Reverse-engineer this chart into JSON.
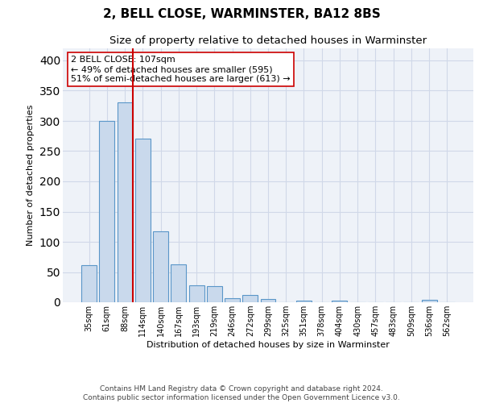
{
  "title": "2, BELL CLOSE, WARMINSTER, BA12 8BS",
  "subtitle": "Size of property relative to detached houses in Warminster",
  "xlabel": "Distribution of detached houses by size in Warminster",
  "ylabel": "Number of detached properties",
  "categories": [
    "35sqm",
    "61sqm",
    "88sqm",
    "114sqm",
    "140sqm",
    "167sqm",
    "193sqm",
    "219sqm",
    "246sqm",
    "272sqm",
    "299sqm",
    "325sqm",
    "351sqm",
    "378sqm",
    "404sqm",
    "430sqm",
    "457sqm",
    "483sqm",
    "509sqm",
    "536sqm",
    "562sqm"
  ],
  "values": [
    62,
    300,
    330,
    270,
    118,
    63,
    28,
    27,
    7,
    12,
    5,
    0,
    3,
    0,
    3,
    0,
    0,
    0,
    0,
    4,
    0
  ],
  "bar_color": "#c9d9ec",
  "bar_edge_color": "#5a96c8",
  "annotation_line_color": "#cc0000",
  "annotation_box_text": "2 BELL CLOSE: 107sqm\n← 49% of detached houses are smaller (595)\n51% of semi-detached houses are larger (613) →",
  "ylim": [
    0,
    420
  ],
  "yticks": [
    0,
    50,
    100,
    150,
    200,
    250,
    300,
    350,
    400
  ],
  "grid_color": "#d0d8e8",
  "background_color": "#eef2f8",
  "footer_text": "Contains HM Land Registry data © Crown copyright and database right 2024.\nContains public sector information licensed under the Open Government Licence v3.0.",
  "title_fontsize": 11,
  "subtitle_fontsize": 9.5,
  "annotation_fontsize": 8,
  "footer_fontsize": 6.5,
  "ylabel_fontsize": 8,
  "xlabel_fontsize": 8
}
